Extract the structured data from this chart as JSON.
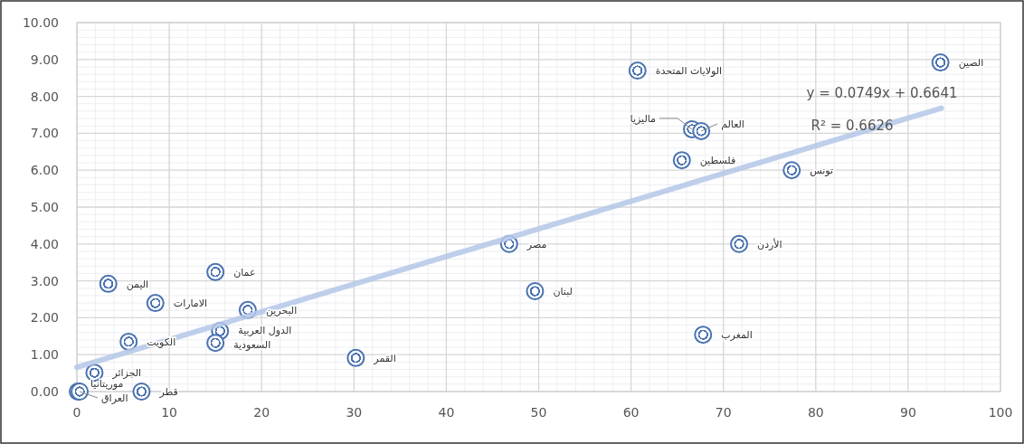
{
  "chart_data": {
    "type": "scatter",
    "xlim": [
      0,
      100
    ],
    "ylim": [
      0,
      10
    ],
    "xticks": [
      0,
      10,
      20,
      30,
      40,
      50,
      60,
      70,
      80,
      90,
      100
    ],
    "yticks": [
      {
        "value": 0,
        "label": "0.00"
      },
      {
        "value": 1,
        "label": "1.00"
      },
      {
        "value": 2,
        "label": "2.00"
      },
      {
        "value": 3,
        "label": "3.00"
      },
      {
        "value": 4,
        "label": "4.00"
      },
      {
        "value": 5,
        "label": "5.00"
      },
      {
        "value": 6,
        "label": "6.00"
      },
      {
        "value": 7,
        "label": "7.00"
      },
      {
        "value": 8,
        "label": "8.00"
      },
      {
        "value": 9,
        "label": "9.00"
      },
      {
        "value": 10,
        "label": "10.00"
      }
    ],
    "grid": true,
    "marker": "circle",
    "series": [
      {
        "color": "#4a72b0",
        "x": [
          93.5,
          60.7,
          66.6,
          67.6,
          65.5,
          77.4,
          46.8,
          71.7,
          49.6,
          67.8,
          30.2,
          15.0,
          3.4,
          8.5,
          18.5,
          15.5,
          15.0,
          5.6,
          1.9,
          0.1,
          0.3,
          7.0
        ],
        "values": [
          8.92,
          8.7,
          7.11,
          7.06,
          6.27,
          6.0,
          4.0,
          4.0,
          2.72,
          1.54,
          0.91,
          3.24,
          2.92,
          2.4,
          2.21,
          1.64,
          1.32,
          1.35,
          0.51,
          0.0,
          0.0,
          0.0
        ]
      },
      {
        "type": "line",
        "marker": "none",
        "color": "#b4c7e7",
        "x": [
          0,
          93.6
        ],
        "values": [
          0.66,
          7.68
        ]
      }
    ],
    "annotations": [
      {
        "text": "الصين",
        "x": 93.5,
        "y": 8.92
      },
      {
        "text": "الولايات المتحدة",
        "x": 60.7,
        "y": 8.7
      },
      {
        "text": "ماليزيا",
        "x": 66.6,
        "y": 7.11
      },
      {
        "text": "العالم",
        "x": 67.6,
        "y": 7.06
      },
      {
        "text": "فلسطين",
        "x": 65.5,
        "y": 6.27
      },
      {
        "text": "تونس",
        "x": 77.4,
        "y": 6.0
      },
      {
        "text": "مصر",
        "x": 46.8,
        "y": 4.0
      },
      {
        "text": "الأردن",
        "x": 71.7,
        "y": 4.0
      },
      {
        "text": "لبنان",
        "x": 49.6,
        "y": 2.72
      },
      {
        "text": "المغرب",
        "x": 67.8,
        "y": 1.54
      },
      {
        "text": "القمر",
        "x": 30.2,
        "y": 0.91
      },
      {
        "text": "عمان",
        "x": 15.0,
        "y": 3.24
      },
      {
        "text": "اليمن",
        "x": 3.4,
        "y": 2.92
      },
      {
        "text": "الامارات",
        "x": 8.5,
        "y": 2.4
      },
      {
        "text": "البحرين",
        "x": 18.5,
        "y": 2.21
      },
      {
        "text": "الدول العربية",
        "x": 15.5,
        "y": 1.64
      },
      {
        "text": "السعودية",
        "x": 15.0,
        "y": 1.32
      },
      {
        "text": "الكويت",
        "x": 5.6,
        "y": 1.35
      },
      {
        "text": "الجزائر",
        "x": 1.9,
        "y": 0.51
      },
      {
        "text": "موريتانيا",
        "x": 0.1,
        "y": 0.0
      },
      {
        "text": "العراق",
        "x": 0.3,
        "y": 0.0
      },
      {
        "text": "قطر",
        "x": 7.0,
        "y": 0.0
      },
      "y = 0.0749x + 0.6641",
      "R² = 0.6626"
    ]
  }
}
